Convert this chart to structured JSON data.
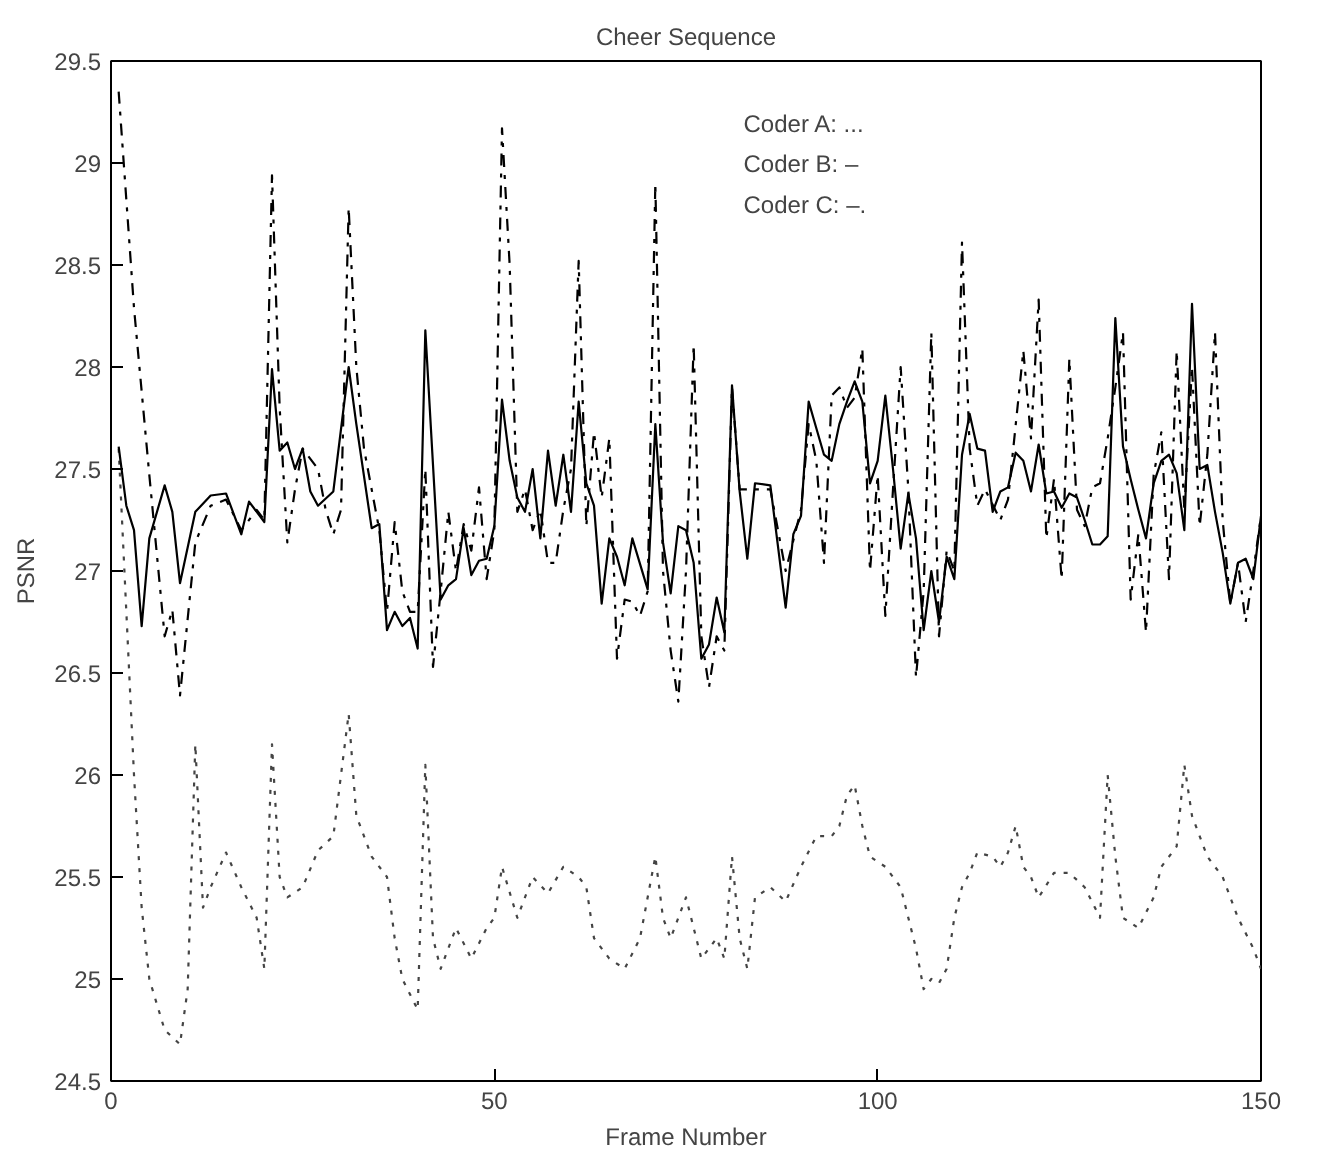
{
  "chart_data": {
    "type": "line",
    "title": "Cheer Sequence",
    "xlabel": "Frame Number",
    "ylabel": "PSNR",
    "annotations": [
      "Coder A: ...",
      "Coder B: –",
      "Coder C: –."
    ],
    "xlim": [
      0,
      150
    ],
    "ylim": [
      24.5,
      29.5
    ],
    "xticks": [
      0,
      50,
      100,
      150
    ],
    "yticks": [
      24.5,
      25,
      25.5,
      26,
      26.5,
      27,
      27.5,
      28,
      28.5,
      29,
      29.5
    ],
    "grid": false,
    "marker": "none",
    "series": [
      {
        "color": "#444444",
        "line_style": "dotted",
        "x": [
          1,
          2,
          3,
          4,
          5,
          7,
          9,
          10,
          11,
          12,
          13,
          15,
          17,
          19,
          20,
          21,
          22,
          23,
          25,
          27,
          29,
          31,
          32,
          34,
          36,
          37,
          38,
          40,
          41,
          42,
          43,
          45,
          47,
          49,
          50,
          51,
          53,
          55,
          57,
          59,
          61,
          62,
          63,
          65,
          67,
          69,
          71,
          72,
          73,
          75,
          77,
          79,
          80,
          81,
          82,
          83,
          84,
          86,
          88,
          90,
          92,
          94,
          95,
          96,
          97,
          98,
          99,
          101,
          103,
          105,
          106,
          107,
          108,
          109,
          110,
          111,
          112,
          113,
          115,
          116,
          117,
          118,
          119,
          120,
          121,
          123,
          125,
          127,
          129,
          130,
          131,
          132,
          134,
          136,
          137,
          139,
          140,
          141,
          143,
          145,
          147,
          149,
          150
        ],
        "values": [
          27.6,
          26.8,
          26.0,
          25.35,
          25.0,
          24.75,
          24.68,
          24.95,
          26.15,
          25.35,
          25.45,
          25.62,
          25.45,
          25.3,
          25.05,
          26.15,
          25.5,
          25.4,
          25.45,
          25.63,
          25.7,
          26.3,
          25.8,
          25.6,
          25.5,
          25.2,
          25.0,
          24.85,
          26.05,
          25.2,
          25.05,
          25.25,
          25.1,
          25.25,
          25.3,
          25.55,
          25.3,
          25.5,
          25.42,
          25.55,
          25.5,
          25.45,
          25.2,
          25.1,
          25.05,
          25.2,
          25.6,
          25.3,
          25.2,
          25.4,
          25.1,
          25.2,
          25.1,
          25.6,
          25.2,
          25.05,
          25.4,
          25.45,
          25.38,
          25.55,
          25.7,
          25.7,
          25.75,
          25.9,
          25.95,
          25.75,
          25.6,
          25.55,
          25.45,
          25.15,
          24.95,
          25.0,
          24.98,
          25.05,
          25.3,
          25.45,
          25.52,
          25.62,
          25.6,
          25.55,
          25.62,
          25.75,
          25.55,
          25.5,
          25.4,
          25.52,
          25.52,
          25.45,
          25.3,
          26.0,
          25.6,
          25.3,
          25.25,
          25.4,
          25.55,
          25.65,
          26.05,
          25.8,
          25.6,
          25.5,
          25.3,
          25.15,
          25.05
        ]
      },
      {
        "color": "#000000",
        "line_style": "solid",
        "x": [
          1,
          2,
          3,
          4,
          5,
          7,
          8,
          9,
          11,
          13,
          15,
          17,
          18,
          20,
          21,
          22,
          23,
          24,
          25,
          26,
          27,
          29,
          31,
          32,
          34,
          35,
          36,
          37,
          38,
          39,
          40,
          41,
          43,
          44,
          45,
          46,
          47,
          48,
          49,
          50,
          51,
          52,
          53,
          54,
          55,
          56,
          57,
          58,
          59,
          60,
          61,
          62,
          63,
          64,
          65,
          66,
          67,
          68,
          70,
          71,
          72,
          73,
          74,
          75,
          76,
          77,
          78,
          79,
          80,
          81,
          82,
          83,
          84,
          86,
          88,
          89,
          90,
          91,
          92,
          93,
          94,
          95,
          96,
          97,
          98,
          99,
          100,
          101,
          102,
          103,
          104,
          105,
          106,
          107,
          108,
          109,
          110,
          111,
          112,
          113,
          114,
          115,
          116,
          117,
          118,
          119,
          120,
          121,
          122,
          123,
          124,
          125,
          126,
          127,
          128,
          129,
          130,
          131,
          132,
          133,
          134,
          135,
          136,
          137,
          138,
          139,
          140,
          141,
          142,
          143,
          144,
          145,
          146,
          147,
          148,
          149,
          150
        ],
        "values": [
          27.61,
          27.32,
          27.2,
          26.73,
          27.16,
          27.42,
          27.29,
          26.94,
          27.29,
          27.37,
          27.38,
          27.18,
          27.34,
          27.24,
          27.99,
          27.59,
          27.63,
          27.5,
          27.6,
          27.39,
          27.32,
          27.39,
          28.0,
          27.72,
          27.21,
          27.23,
          26.71,
          26.8,
          26.73,
          26.77,
          26.62,
          28.18,
          26.86,
          26.93,
          26.96,
          27.21,
          26.98,
          27.05,
          27.06,
          27.22,
          27.84,
          27.54,
          27.36,
          27.29,
          27.5,
          27.16,
          27.59,
          27.32,
          27.57,
          27.29,
          27.83,
          27.43,
          27.32,
          26.84,
          27.16,
          27.07,
          26.93,
          27.16,
          26.91,
          27.72,
          27.14,
          26.89,
          27.22,
          27.2,
          27.04,
          26.57,
          26.64,
          26.87,
          26.7,
          27.91,
          27.39,
          27.06,
          27.43,
          27.42,
          26.82,
          27.18,
          27.27,
          27.83,
          27.7,
          27.57,
          27.54,
          27.72,
          27.83,
          27.93,
          27.83,
          27.43,
          27.54,
          27.86,
          27.5,
          27.11,
          27.38,
          27.16,
          26.71,
          27.0,
          26.75,
          27.07,
          26.96,
          27.57,
          27.77,
          27.6,
          27.59,
          27.29,
          27.39,
          27.41,
          27.58,
          27.54,
          27.39,
          27.62,
          27.38,
          27.39,
          27.31,
          27.38,
          27.36,
          27.25,
          27.13,
          27.13,
          27.17,
          28.24,
          27.61,
          27.45,
          27.3,
          27.16,
          27.43,
          27.54,
          27.57,
          27.48,
          27.2,
          28.31,
          27.5,
          27.52,
          27.29,
          27.09,
          26.84,
          27.04,
          27.06,
          26.96,
          27.27
        ]
      },
      {
        "color": "#000000",
        "line_style": "dashdot",
        "x": [
          1,
          3,
          5,
          7,
          8,
          9,
          11,
          13,
          15,
          17,
          19,
          20,
          21,
          22,
          23,
          24,
          25,
          26,
          27,
          28,
          29,
          30,
          31,
          32,
          33,
          35,
          36,
          37,
          38,
          39,
          40,
          41,
          42,
          43,
          44,
          45,
          46,
          47,
          48,
          49,
          50,
          51,
          52,
          53,
          54,
          55,
          56,
          57,
          58,
          59,
          60,
          61,
          62,
          63,
          64,
          65,
          66,
          67,
          68,
          69,
          70,
          71,
          72,
          73,
          74,
          75,
          76,
          77,
          78,
          79,
          80,
          81,
          82,
          84,
          86,
          88,
          90,
          91,
          92,
          93,
          94,
          95,
          96,
          97,
          98,
          99,
          100,
          101,
          102,
          103,
          104,
          105,
          106,
          107,
          108,
          109,
          110,
          111,
          112,
          113,
          114,
          116,
          117,
          119,
          120,
          121,
          122,
          123,
          124,
          125,
          126,
          127,
          128,
          129,
          130,
          131,
          132,
          133,
          134,
          135,
          136,
          137,
          138,
          139,
          140,
          141,
          142,
          143,
          144,
          145,
          146,
          147,
          148,
          149,
          150
        ],
        "values": [
          29.35,
          28.29,
          27.47,
          26.68,
          26.81,
          26.39,
          27.14,
          27.32,
          27.35,
          27.2,
          27.3,
          27.25,
          28.94,
          27.8,
          27.14,
          27.4,
          27.6,
          27.55,
          27.5,
          27.3,
          27.18,
          27.3,
          28.78,
          28.0,
          27.6,
          27.2,
          26.8,
          27.24,
          26.9,
          26.8,
          26.8,
          27.5,
          26.53,
          26.9,
          27.29,
          27.0,
          27.23,
          27.1,
          27.41,
          26.96,
          27.2,
          29.17,
          28.5,
          27.29,
          27.4,
          27.2,
          27.3,
          27.04,
          27.04,
          27.3,
          27.5,
          28.52,
          27.22,
          27.68,
          27.36,
          27.65,
          26.57,
          26.86,
          26.85,
          26.78,
          26.9,
          28.9,
          27.0,
          26.61,
          26.36,
          27.0,
          28.11,
          26.68,
          26.43,
          26.68,
          26.61,
          27.9,
          27.4,
          27.4,
          27.4,
          27.0,
          27.3,
          27.72,
          27.54,
          27.04,
          27.86,
          27.9,
          27.8,
          27.85,
          28.09,
          27.0,
          27.47,
          26.78,
          27.4,
          28.0,
          27.4,
          26.48,
          26.9,
          28.17,
          26.68,
          27.1,
          27.0,
          28.61,
          27.6,
          27.32,
          27.4,
          27.25,
          27.35,
          28.08,
          27.65,
          28.33,
          27.16,
          27.45,
          26.96,
          28.04,
          27.3,
          27.22,
          27.41,
          27.43,
          27.65,
          27.9,
          28.17,
          26.86,
          27.18,
          26.7,
          27.47,
          27.68,
          26.96,
          28.08,
          27.3,
          28.0,
          27.22,
          27.57,
          28.17,
          27.25,
          26.84,
          27.04,
          26.75,
          27.0,
          27.27
        ]
      }
    ]
  }
}
